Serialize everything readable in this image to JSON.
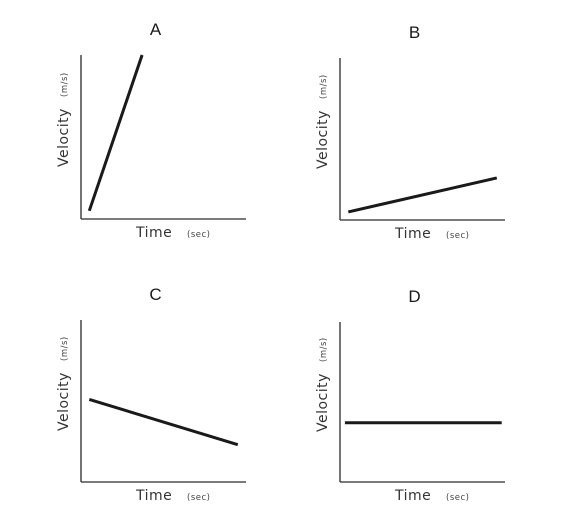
{
  "chart_data": [
    {
      "type": "line",
      "title": "A",
      "xlabel": "Time",
      "xunit": "(sec)",
      "ylabel": "Velocity",
      "yunit": "(m/s)",
      "x": [
        0.05,
        0.37
      ],
      "y": [
        0.05,
        1.0
      ],
      "xlim": [
        0,
        1
      ],
      "ylim": [
        0,
        1
      ],
      "grid": false
    },
    {
      "type": "line",
      "title": "B",
      "xlabel": "Time",
      "xunit": "(sec)",
      "ylabel": "Velocity",
      "yunit": "(m/s)",
      "x": [
        0.05,
        0.95
      ],
      "y": [
        0.05,
        0.26
      ],
      "xlim": [
        0,
        1
      ],
      "ylim": [
        0,
        1
      ],
      "grid": false
    },
    {
      "type": "line",
      "title": "C",
      "xlabel": "Time",
      "xunit": "(sec)",
      "ylabel": "Velocity",
      "yunit": "(m/s)",
      "x": [
        0.05,
        0.95
      ],
      "y": [
        0.51,
        0.23
      ],
      "xlim": [
        0,
        1
      ],
      "ylim": [
        0,
        1
      ],
      "grid": false
    },
    {
      "type": "line",
      "title": "D",
      "xlabel": "Time",
      "xunit": "(sec)",
      "ylabel": "Velocity",
      "yunit": "(m/s)",
      "x": [
        0.03,
        0.98
      ],
      "y": [
        0.37,
        0.37
      ],
      "xlim": [
        0,
        1
      ],
      "ylim": [
        0,
        1
      ],
      "grid": false
    }
  ]
}
